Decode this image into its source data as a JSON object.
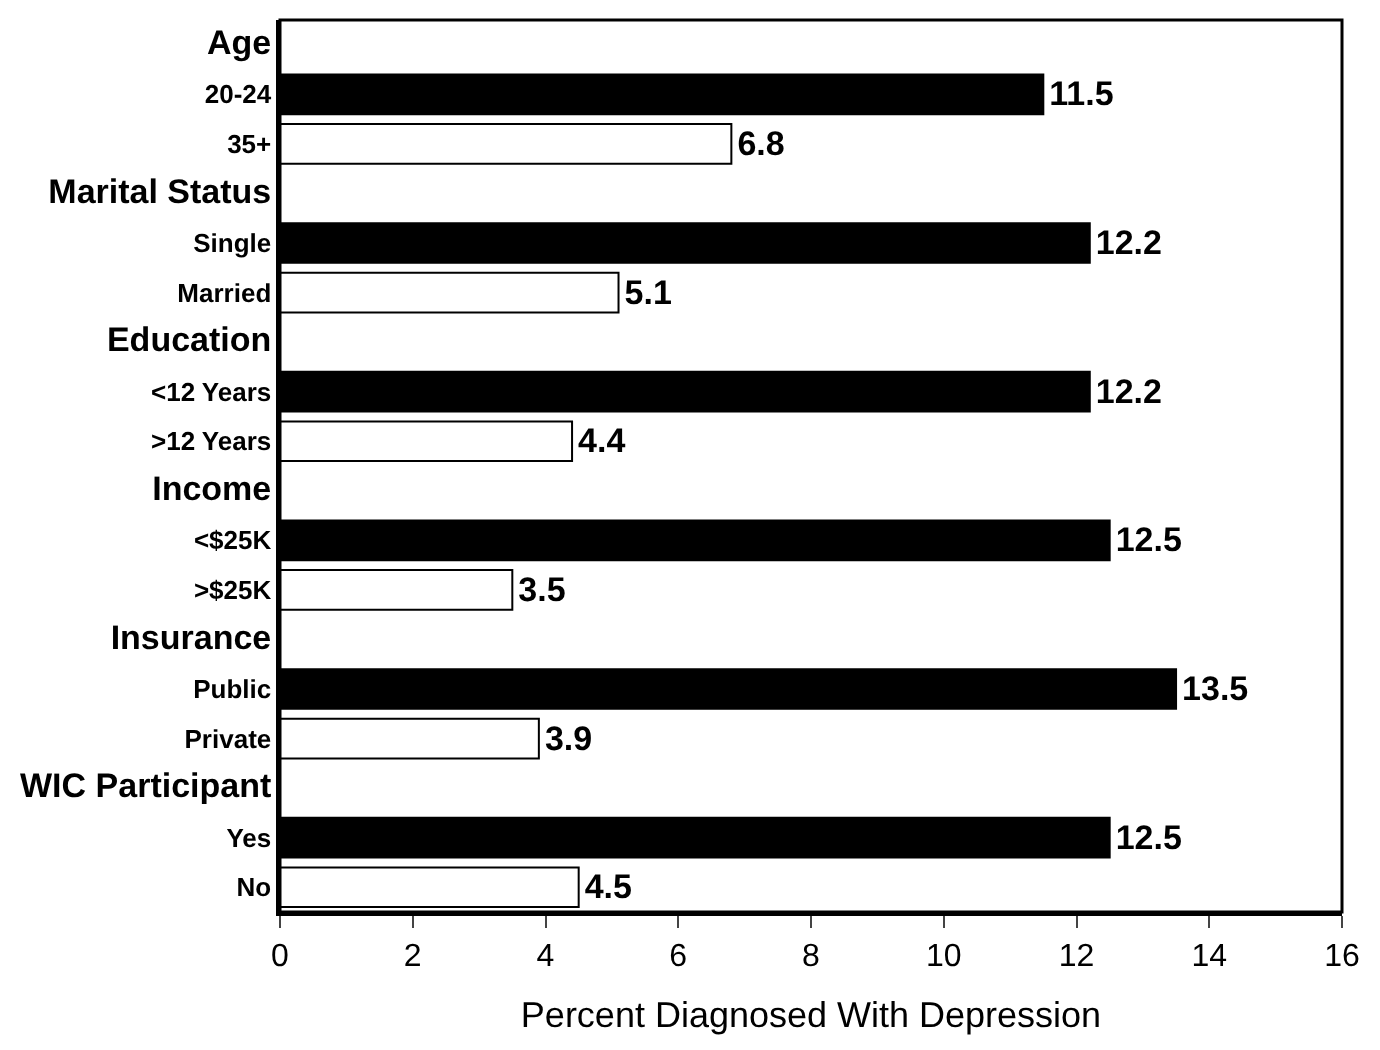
{
  "chart_data": {
    "type": "bar",
    "orientation": "horizontal",
    "xlabel": "Percent Diagnosed With Depression",
    "categories": [
      "Age",
      "20-24",
      "35+",
      "Marital Status",
      "Single",
      "Married",
      "Education",
      "<12 Years",
      ">12 Years",
      "Income",
      "<$25K",
      ">$25K",
      "Insurance",
      "Public",
      "Private",
      "WIC Participant",
      "Yes",
      "No"
    ],
    "values": [
      null,
      11.5,
      6.8,
      null,
      12.2,
      5.1,
      null,
      12.2,
      4.4,
      null,
      12.5,
      3.5,
      null,
      13.5,
      3.9,
      null,
      12.5,
      4.5
    ],
    "colors": [
      null,
      "#000000",
      "#ffffff",
      null,
      "#000000",
      "#ffffff",
      null,
      "#000000",
      "#ffffff",
      null,
      "#000000",
      "#ffffff",
      null,
      "#000000",
      "#ffffff",
      null,
      "#000000",
      "#ffffff"
    ],
    "xlim": [
      0,
      16
    ],
    "xticks": [
      0,
      2,
      4,
      6,
      8,
      10,
      12,
      14,
      16
    ],
    "data_labels": true
  }
}
